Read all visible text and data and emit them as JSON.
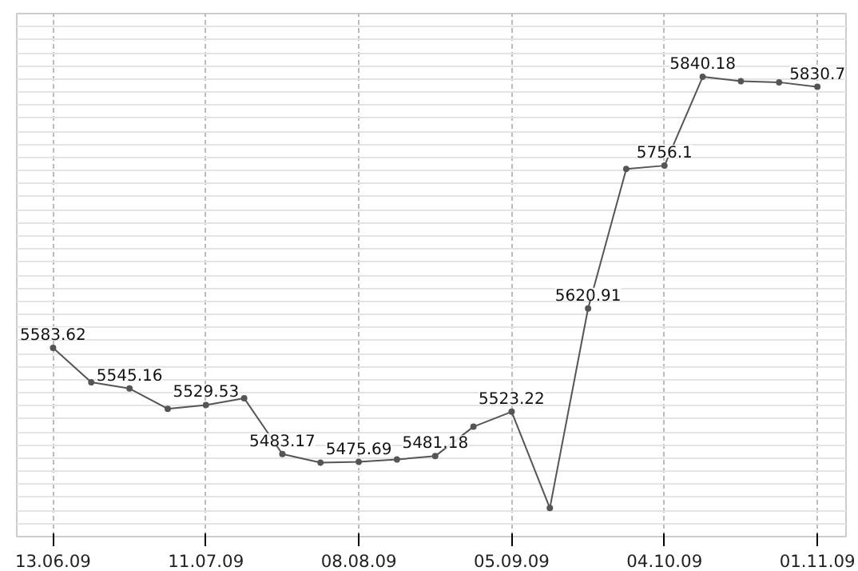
{
  "chart_data": {
    "type": "line",
    "categories": [
      "13.06.09",
      null,
      null,
      null,
      "11.07.09",
      null,
      null,
      null,
      "08.08.09",
      null,
      null,
      null,
      "05.09.09",
      null,
      null,
      null,
      "04.10.09",
      null,
      null,
      null,
      "01.11.09"
    ],
    "series": [
      {
        "color": "#555555",
        "values": [
          5583.62,
          5551,
          5545.16,
          5526,
          5529.53,
          5536,
          5483.17,
          5475,
          5475.69,
          5478,
          5481.18,
          5509,
          5523.22,
          5432,
          5620.91,
          5753,
          5756.1,
          5840.18,
          5836,
          5835,
          5830.7
        ],
        "value_labels": [
          "5583.62",
          null,
          "5545.16",
          null,
          "5529.53",
          null,
          "5483.17",
          null,
          "5475.69",
          null,
          "5481.18",
          null,
          "5523.22",
          null,
          "5620.91",
          null,
          "5756.1",
          "5840.18",
          null,
          null,
          "5830.7"
        ]
      }
    ],
    "ylim": [
      5405,
      5900
    ],
    "tick_labels": "x",
    "grid": true,
    "marker": "circle",
    "line_style": "solid"
  }
}
